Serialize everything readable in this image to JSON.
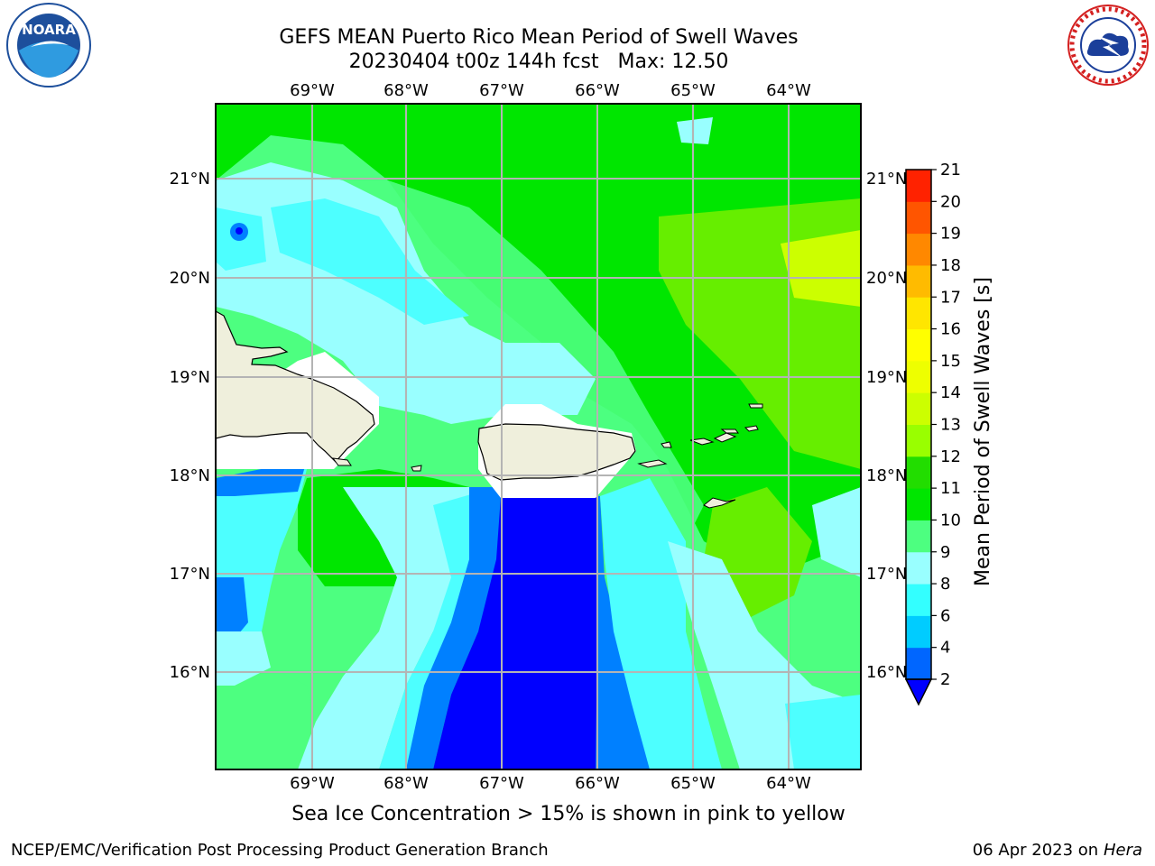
{
  "header": {
    "title_line1": "GEFS MEAN Puerto Rico Mean Period of Swell Waves",
    "title_line2": "20230404 t00z 144h fcst   Max: 12.50"
  },
  "logos": {
    "left": {
      "name": "NOARA",
      "ring_text": "NATIONAL OCEANIC AND ATMOSPHERIC ADMINISTRATION · U.S. DEPARTMENT OF COMMERCE"
    },
    "right": {
      "name": "NATIONAL WEATHER SERVICE"
    }
  },
  "map": {
    "lon_labels": [
      "69°W",
      "68°W",
      "67°W",
      "66°W",
      "65°W",
      "64°W"
    ],
    "lat_labels": [
      "21°N",
      "20°N",
      "19°N",
      "18°N",
      "17°N",
      "16°N"
    ],
    "colors": {
      "dark_blue": "#0000ff",
      "blue": "#0080ff",
      "cyan": "#00ffff",
      "light_cyan": "#4dffff",
      "pale_cyan": "#99ffff",
      "light_green": "#4dff80",
      "green": "#00e600",
      "yellow_green": "#66ee00",
      "lime": "#ccff00",
      "land": "#efefdc"
    }
  },
  "colorbar": {
    "label": "Mean Period of Swell Waves [s]",
    "ticks": [
      "2",
      "4",
      "6",
      "8",
      "9",
      "10",
      "11",
      "12",
      "13",
      "14",
      "15",
      "16",
      "17",
      "18",
      "19",
      "20",
      "21"
    ],
    "colors": [
      "#0066ff",
      "#00ccff",
      "#33ffff",
      "#99ffff",
      "#4dff80",
      "#00e600",
      "#22dd00",
      "#99ff00",
      "#ccff00",
      "#eeff00",
      "#ffff00",
      "#ffe600",
      "#ffbb00",
      "#ff8800",
      "#ff5500",
      "#ff2200"
    ],
    "extend_color": "#0000ff"
  },
  "note": "Sea Ice Concentration > 15% is shown in pink to yellow",
  "footer": {
    "left": "NCEP/EMC/Verification Post Processing Product Generation Branch",
    "right_prefix": "06 Apr 2023 on ",
    "right_machine": "Hera"
  }
}
